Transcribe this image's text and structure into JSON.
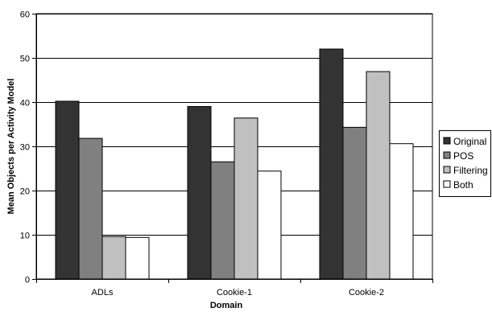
{
  "chart_data": {
    "type": "bar",
    "title": "",
    "xlabel": "Domain",
    "ylabel": "Mean Objects per Activity Model",
    "ylim": [
      0,
      60
    ],
    "yticks": [
      0,
      10,
      20,
      30,
      40,
      50,
      60
    ],
    "categories": [
      "ADLs",
      "Cookie-1",
      "Cookie-2"
    ],
    "grid": true,
    "legend_position": "right",
    "series": [
      {
        "name": "Original",
        "color": "#333333",
        "values": [
          40.2,
          39.0,
          52.0
        ]
      },
      {
        "name": "POS",
        "color": "#808080",
        "values": [
          31.8,
          26.5,
          34.3
        ]
      },
      {
        "name": "Filtering",
        "color": "#c0c0c0",
        "values": [
          9.6,
          36.4,
          46.9
        ]
      },
      {
        "name": "Both",
        "color": "#ffffff",
        "values": [
          9.4,
          24.4,
          30.6
        ]
      }
    ]
  }
}
